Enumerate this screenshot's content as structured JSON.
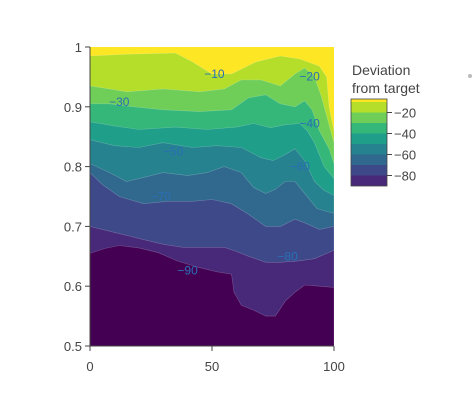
{
  "chart_data": {
    "type": "contour",
    "x_range": [
      0,
      100
    ],
    "y_range": [
      0.5,
      1
    ],
    "x_ticks": [
      "0",
      "50",
      "100"
    ],
    "y_ticks": [
      "0.5",
      "0.6",
      "0.7",
      "0.8",
      "0.9",
      "1"
    ],
    "colorbar": {
      "title_lines": [
        "Deviation",
        "from target"
      ],
      "tick_labels": [
        "−20",
        "−40",
        "−60",
        "−80"
      ],
      "range": [
        -90,
        -10
      ]
    },
    "contour_labels": [
      {
        "text": "−10",
        "x": 51,
        "y": 0.955
      },
      {
        "text": "−20",
        "x": 90,
        "y": 0.951
      },
      {
        "text": "−30",
        "x": 12,
        "y": 0.908
      },
      {
        "text": "−40",
        "x": 90,
        "y": 0.872
      },
      {
        "text": "−50",
        "x": 34,
        "y": 0.825
      },
      {
        "text": "−60",
        "x": 86,
        "y": 0.8
      },
      {
        "text": "−70",
        "x": 29,
        "y": 0.75
      },
      {
        "text": "−80",
        "x": 81,
        "y": 0.65
      },
      {
        "text": "−90",
        "x": 40,
        "y": 0.626
      }
    ],
    "contour_levels": [
      {
        "level": -10,
        "color": "#fde725",
        "points": [
          [
            0,
            1.0
          ],
          [
            100,
            1.0
          ],
          [
            100,
            0.5
          ],
          [
            0,
            0.5
          ]
        ]
      },
      {
        "level": -20,
        "color": "#b5de2b",
        "points": [
          [
            0,
            0.985
          ],
          [
            15,
            0.988
          ],
          [
            35,
            0.99
          ],
          [
            42,
            0.975
          ],
          [
            50,
            0.955
          ],
          [
            58,
            0.955
          ],
          [
            68,
            0.975
          ],
          [
            78,
            0.985
          ],
          [
            86,
            0.98
          ],
          [
            94,
            0.968
          ],
          [
            97,
            0.95
          ],
          [
            98,
            0.9
          ],
          [
            100,
            0.86
          ],
          [
            100,
            0.5
          ],
          [
            0,
            0.5
          ]
        ]
      },
      {
        "level": -30,
        "color": "#6ece58",
        "points": [
          [
            0,
            0.935
          ],
          [
            8,
            0.93
          ],
          [
            15,
            0.925
          ],
          [
            30,
            0.93
          ],
          [
            45,
            0.925
          ],
          [
            55,
            0.93
          ],
          [
            62,
            0.945
          ],
          [
            70,
            0.945
          ],
          [
            78,
            0.935
          ],
          [
            84,
            0.955
          ],
          [
            88,
            0.965
          ],
          [
            92,
            0.95
          ],
          [
            95,
            0.915
          ],
          [
            98,
            0.87
          ],
          [
            100,
            0.84
          ],
          [
            100,
            0.5
          ],
          [
            0,
            0.5
          ]
        ]
      },
      {
        "level": -40,
        "color": "#35b779",
        "points": [
          [
            0,
            0.905
          ],
          [
            8,
            0.905
          ],
          [
            18,
            0.9
          ],
          [
            30,
            0.895
          ],
          [
            45,
            0.892
          ],
          [
            58,
            0.895
          ],
          [
            65,
            0.915
          ],
          [
            72,
            0.92
          ],
          [
            78,
            0.905
          ],
          [
            84,
            0.9
          ],
          [
            88,
            0.91
          ],
          [
            91,
            0.895
          ],
          [
            94,
            0.86
          ],
          [
            98,
            0.83
          ],
          [
            100,
            0.805
          ],
          [
            100,
            0.5
          ],
          [
            0,
            0.5
          ]
        ]
      },
      {
        "level": -50,
        "color": "#1f9e89",
        "points": [
          [
            0,
            0.875
          ],
          [
            10,
            0.868
          ],
          [
            20,
            0.862
          ],
          [
            35,
            0.866
          ],
          [
            48,
            0.862
          ],
          [
            60,
            0.866
          ],
          [
            67,
            0.872
          ],
          [
            74,
            0.865
          ],
          [
            80,
            0.87
          ],
          [
            86,
            0.872
          ],
          [
            89,
            0.86
          ],
          [
            92,
            0.84
          ],
          [
            96,
            0.8
          ],
          [
            100,
            0.78
          ],
          [
            100,
            0.5
          ],
          [
            0,
            0.5
          ]
        ]
      },
      {
        "level": -60,
        "color": "#26828e",
        "points": [
          [
            0,
            0.845
          ],
          [
            10,
            0.835
          ],
          [
            20,
            0.832
          ],
          [
            30,
            0.84
          ],
          [
            42,
            0.832
          ],
          [
            52,
            0.835
          ],
          [
            62,
            0.832
          ],
          [
            70,
            0.815
          ],
          [
            75,
            0.81
          ],
          [
            80,
            0.82
          ],
          [
            84,
            0.83
          ],
          [
            88,
            0.81
          ],
          [
            92,
            0.775
          ],
          [
            96,
            0.76
          ],
          [
            100,
            0.752
          ],
          [
            100,
            0.5
          ],
          [
            0,
            0.5
          ]
        ]
      },
      {
        "level": -70,
        "color": "#31688e",
        "points": [
          [
            0,
            0.805
          ],
          [
            8,
            0.79
          ],
          [
            15,
            0.775
          ],
          [
            22,
            0.782
          ],
          [
            30,
            0.79
          ],
          [
            40,
            0.785
          ],
          [
            48,
            0.79
          ],
          [
            55,
            0.8
          ],
          [
            62,
            0.79
          ],
          [
            67,
            0.765
          ],
          [
            72,
            0.755
          ],
          [
            76,
            0.762
          ],
          [
            80,
            0.775
          ],
          [
            84,
            0.775
          ],
          [
            88,
            0.755
          ],
          [
            93,
            0.73
          ],
          [
            97,
            0.725
          ],
          [
            100,
            0.722
          ],
          [
            100,
            0.5
          ],
          [
            0,
            0.5
          ]
        ]
      },
      {
        "level": -80,
        "color": "#3e4989",
        "points": [
          [
            0,
            0.79
          ],
          [
            5,
            0.77
          ],
          [
            12,
            0.75
          ],
          [
            22,
            0.738
          ],
          [
            32,
            0.742
          ],
          [
            42,
            0.742
          ],
          [
            50,
            0.745
          ],
          [
            58,
            0.738
          ],
          [
            65,
            0.72
          ],
          [
            72,
            0.7
          ],
          [
            78,
            0.7
          ],
          [
            84,
            0.712
          ],
          [
            88,
            0.706
          ],
          [
            94,
            0.695
          ],
          [
            100,
            0.7
          ],
          [
            100,
            0.5
          ],
          [
            0,
            0.5
          ]
        ]
      },
      {
        "level": -90,
        "color": "#482878",
        "points": [
          [
            0,
            0.7
          ],
          [
            10,
            0.69
          ],
          [
            20,
            0.68
          ],
          [
            30,
            0.67
          ],
          [
            38,
            0.665
          ],
          [
            45,
            0.665
          ],
          [
            55,
            0.665
          ],
          [
            60,
            0.658
          ],
          [
            65,
            0.65
          ],
          [
            72,
            0.64
          ],
          [
            78,
            0.64
          ],
          [
            85,
            0.642
          ],
          [
            92,
            0.646
          ],
          [
            100,
            0.66
          ],
          [
            100,
            0.5
          ],
          [
            0,
            0.5
          ]
        ]
      },
      {
        "level": -100,
        "color": "#440154",
        "points": [
          [
            0,
            0.655
          ],
          [
            6,
            0.663
          ],
          [
            12,
            0.668
          ],
          [
            20,
            0.664
          ],
          [
            28,
            0.656
          ],
          [
            36,
            0.642
          ],
          [
            44,
            0.632
          ],
          [
            52,
            0.624
          ],
          [
            58,
            0.62
          ],
          [
            59,
            0.59
          ],
          [
            62,
            0.568
          ],
          [
            67,
            0.56
          ],
          [
            72,
            0.55
          ],
          [
            76,
            0.55
          ],
          [
            80,
            0.575
          ],
          [
            84,
            0.59
          ],
          [
            88,
            0.602
          ],
          [
            94,
            0.6
          ],
          [
            100,
            0.598
          ],
          [
            100,
            0.5
          ],
          [
            0,
            0.5
          ]
        ]
      }
    ]
  }
}
